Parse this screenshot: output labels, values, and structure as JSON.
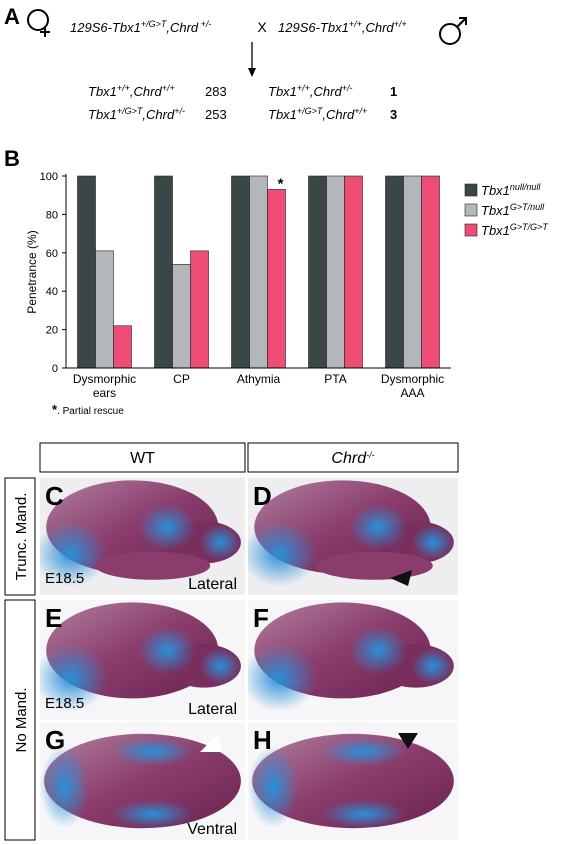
{
  "panel_a": {
    "label": "A",
    "female": [
      {
        "text": "129S6-Tbx1"
      },
      {
        "sup": "+/G>T"
      },
      {
        "text": ",Chrd"
      },
      {
        "sup": " +/-"
      }
    ],
    "times": "X",
    "male": [
      {
        "text": "129S6-Tbx1"
      },
      {
        "sup": "+/+"
      },
      {
        "text": ",Chrd"
      },
      {
        "sup": "+/+"
      }
    ],
    "offspring": [
      [
        {
          "genotype": [
            {
              "text": "Tbx1"
            },
            {
              "sup": "+/+"
            },
            {
              "text": ",Chrd"
            },
            {
              "sup": "+/+"
            }
          ],
          "count": 283
        },
        {
          "genotype": [
            {
              "text": "Tbx1"
            },
            {
              "sup": "+/+"
            },
            {
              "text": ",Chrd"
            },
            {
              "sup": "+/-"
            }
          ],
          "count": 1
        }
      ],
      [
        {
          "genotype": [
            {
              "text": "Tbx1"
            },
            {
              "sup": "+/G>T"
            },
            {
              "text": ",Chrd"
            },
            {
              "sup": "+/-"
            }
          ],
          "count": 253
        },
        {
          "genotype": [
            {
              "text": "Tbx1"
            },
            {
              "sup": "+/G>T"
            },
            {
              "text": ",Chrd"
            },
            {
              "sup": "+/+"
            }
          ],
          "count": 3
        }
      ]
    ]
  },
  "chart_data": {
    "type": "bar",
    "label": "B",
    "ylabel": "Penetrance (%)",
    "categories": [
      "Dysmorphic ears",
      "CP",
      "Athymia",
      "PTA",
      "Dysmorphic AAA"
    ],
    "series": [
      {
        "name": "Tbx1",
        "name_sup": "null/null",
        "color": "#3b4646",
        "values": [
          100,
          100,
          100,
          100,
          100
        ]
      },
      {
        "name": "Tbx1",
        "name_sup": "G>T/null",
        "color": "#b3b6ba",
        "values": [
          61,
          54,
          100,
          100,
          100
        ]
      },
      {
        "name": "Tbx1",
        "name_sup": "G>T/G>T",
        "color": "#ee4d76",
        "values": [
          22,
          61,
          93,
          100,
          100
        ]
      }
    ],
    "ylim": [
      0,
      100
    ],
    "yticks": [
      0,
      20,
      40,
      60,
      80,
      100
    ],
    "legend": "right",
    "annotations": [
      {
        "text": "*",
        "category": "Athymia"
      }
    ],
    "footnote": {
      "mark": "*",
      "text": ". Partial rescue"
    }
  },
  "panel_lower": {
    "col_headers": [
      [
        {
          "text": "WT"
        }
      ],
      [
        {
          "text": "Chrd"
        },
        {
          "sup": "-/-"
        }
      ]
    ],
    "row_headers": [
      "Trunc. Mand.",
      "No Mand."
    ],
    "images": [
      {
        "label": "C",
        "stage": "E18.5",
        "view": "Lateral"
      },
      {
        "label": "D"
      },
      {
        "label": "E",
        "stage": "E18.5",
        "view": "Lateral"
      },
      {
        "label": "F"
      },
      {
        "label": "G",
        "view": "Ventral"
      },
      {
        "label": "H"
      }
    ]
  }
}
